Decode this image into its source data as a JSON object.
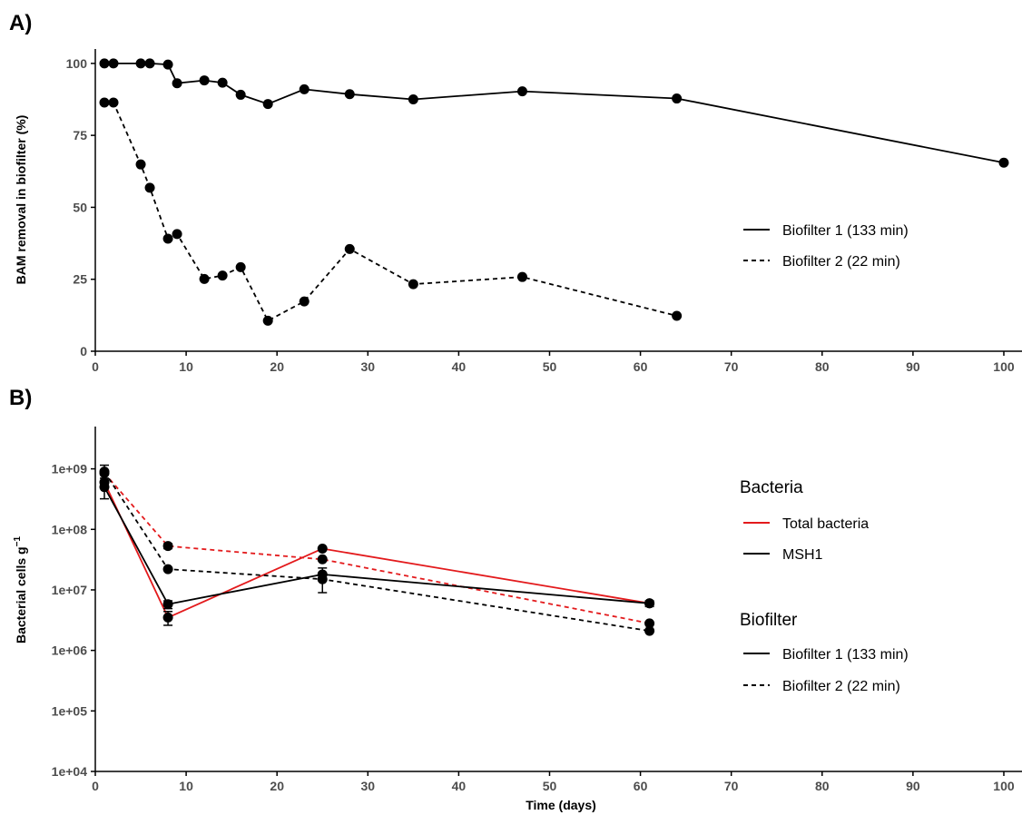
{
  "panels": {
    "a": {
      "label": "A)"
    },
    "b": {
      "label": "B)"
    }
  },
  "chart_data": [
    {
      "type": "line",
      "panel": "A)",
      "xlabel": "",
      "ylabel": "BAM removal in biofilter (%)",
      "xlim": [
        0,
        102
      ],
      "ylim": [
        0,
        105
      ],
      "xticks": [
        "0",
        "10",
        "20",
        "30",
        "40",
        "50",
        "60",
        "70",
        "80",
        "90",
        "100"
      ],
      "yticks": [
        "0",
        "25",
        "50",
        "75",
        "100"
      ],
      "legend_position": "right",
      "legend": [
        {
          "label": "Biofilter 1 (133 min)",
          "linestyle": "solid"
        },
        {
          "label": "Biofilter 2 (22 min)",
          "linestyle": "dashed"
        }
      ],
      "series": [
        {
          "name": "Biofilter 1 (133 min)",
          "linestyle": "solid",
          "color": "#000000",
          "x": [
            1,
            2,
            5,
            6,
            8,
            9,
            12,
            14,
            16,
            19,
            23,
            28,
            35,
            47,
            64,
            100
          ],
          "y": [
            100,
            100,
            100,
            100,
            99.6,
            93.1,
            94.1,
            93.3,
            89.1,
            85.9,
            91.0,
            89.3,
            87.5,
            90.3,
            87.8,
            65.5
          ]
        },
        {
          "name": "Biofilter 2 (22 min)",
          "linestyle": "dashed",
          "color": "#000000",
          "x": [
            1,
            2,
            5,
            6,
            8,
            9,
            12,
            14,
            16,
            19,
            23,
            28,
            35,
            47,
            64
          ],
          "y": [
            86.4,
            86.4,
            64.9,
            56.8,
            39.1,
            40.7,
            25.1,
            26.3,
            29.2,
            10.6,
            17.3,
            35.5,
            23.3,
            25.8,
            12.3
          ]
        }
      ]
    },
    {
      "type": "line",
      "panel": "B)",
      "xlabel": "Time (days)",
      "ylabel": "Bacterial cells g",
      "ylabel_superscript": "−1",
      "yscale": "log",
      "xlim": [
        0,
        102
      ],
      "ylim": [
        10000,
        5000000000
      ],
      "xticks": [
        "0",
        "10",
        "20",
        "30",
        "40",
        "50",
        "60",
        "70",
        "80",
        "90",
        "100"
      ],
      "yticks": [
        "1e+04",
        "1e+05",
        "1e+06",
        "1e+07",
        "1e+08",
        "1e+09"
      ],
      "legend_position": "right",
      "legend_groups": [
        {
          "title": "Bacteria",
          "entries": [
            {
              "label": "Total bacteria",
              "color": "#e31a1c",
              "linestyle": "solid"
            },
            {
              "label": "MSH1",
              "color": "#000000",
              "linestyle": "solid"
            }
          ]
        },
        {
          "title": "Biofilter",
          "entries": [
            {
              "label": "Biofilter 1 (133 min)",
              "color": "#000000",
              "linestyle": "solid"
            },
            {
              "label": "Biofilter 2 (22 min)",
              "color": "#000000",
              "linestyle": "dashed"
            }
          ]
        }
      ],
      "series": [
        {
          "bacteria": "Total bacteria",
          "biofilter": "Biofilter 1 (133 min)",
          "color": "#e31a1c",
          "linestyle": "solid",
          "x": [
            1,
            8,
            25,
            61
          ],
          "y": [
            600000000,
            3500000,
            48000000,
            6000000
          ],
          "err_low": [
            null,
            null,
            null,
            null
          ],
          "err_high": [
            null,
            null,
            null,
            null
          ]
        },
        {
          "bacteria": "Total bacteria",
          "biofilter": "Biofilter 2 (22 min)",
          "color": "#e31a1c",
          "linestyle": "dashed",
          "x": [
            1,
            8,
            25,
            61
          ],
          "y": [
            850000000,
            53000000,
            32000000,
            2800000
          ],
          "err_low": [
            null,
            48000000,
            null,
            null
          ],
          "err_high": [
            null,
            58000000,
            null,
            null
          ]
        },
        {
          "bacteria": "MSH1",
          "biofilter": "Biofilter 1 (133 min)",
          "color": "#000000",
          "linestyle": "solid",
          "x": [
            1,
            8,
            25,
            61
          ],
          "y": [
            500000000,
            5800000,
            18000000,
            6000000
          ],
          "err_low": [
            320000000,
            4900000,
            9000000,
            5300000
          ],
          "err_high": [
            800000000,
            6600000,
            23000000,
            6600000
          ]
        },
        {
          "bacteria": "MSH1",
          "biofilter": "Biofilter 2 (22 min)",
          "color": "#000000",
          "linestyle": "dashed",
          "x": [
            1,
            8,
            25,
            61
          ],
          "y": [
            900000000,
            22000000,
            15000000,
            2100000
          ],
          "err_low": [
            700000000,
            2600000,
            null,
            null
          ],
          "err_high": [
            1150000000,
            4400000,
            null,
            null
          ]
        }
      ]
    }
  ]
}
